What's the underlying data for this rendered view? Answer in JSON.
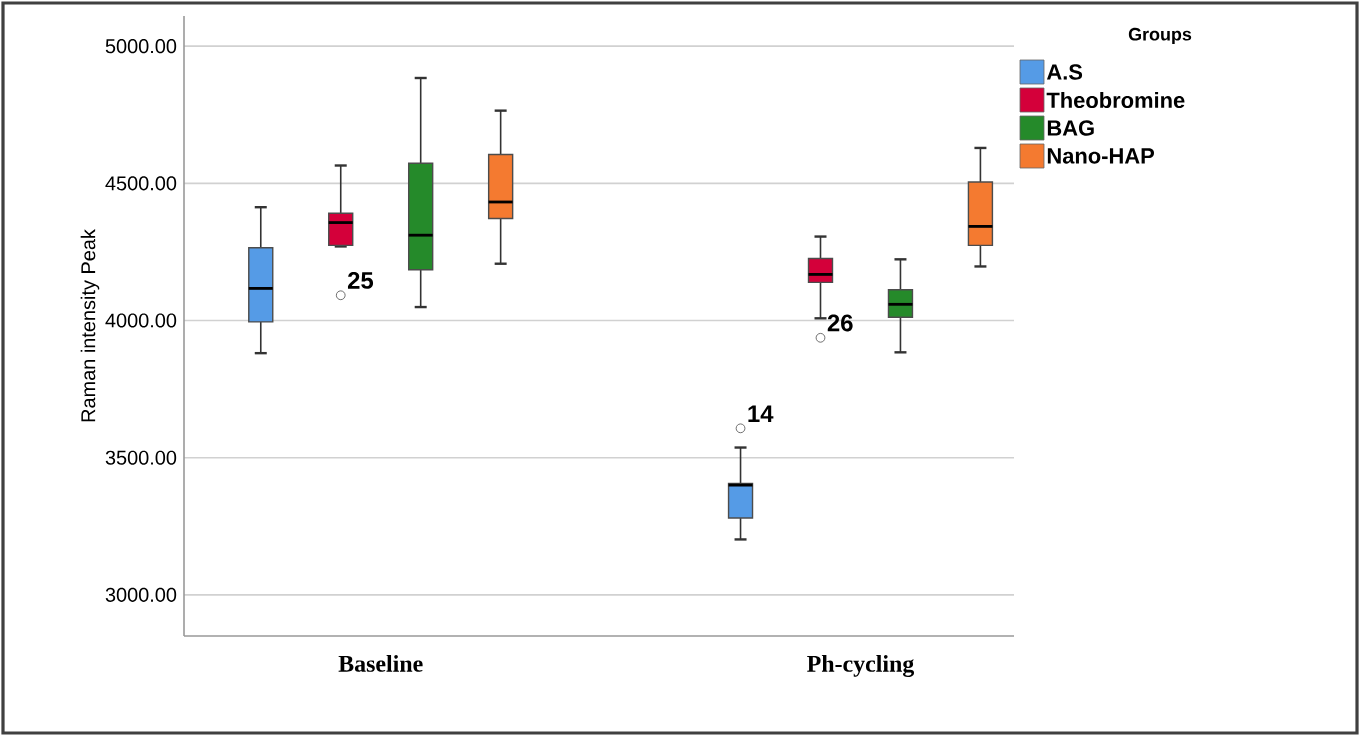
{
  "chart_data": {
    "type": "box",
    "categories": [
      "Baseline",
      "Ph-cycling"
    ],
    "ylabel": "Raman intensity Peak",
    "legend_title": "Groups",
    "legend": "right",
    "grid": "y",
    "ylim": [
      2850,
      5110
    ],
    "yticks": [
      {
        "value": 3000,
        "label": "3000.00"
      },
      {
        "value": 3500,
        "label": "3500.00"
      },
      {
        "value": 4000,
        "label": "4000.00"
      },
      {
        "value": 4500,
        "label": "4500.00"
      },
      {
        "value": 5000,
        "label": "5000.00"
      }
    ],
    "series": [
      {
        "name": "A.S",
        "color": "#559be6",
        "boxes": [
          {
            "low": 3881,
            "q1": 3995,
            "median": 4117,
            "q3": 4265,
            "high": 4413
          },
          {
            "low": 3202,
            "q1": 3280,
            "median": 3400,
            "q3": 3406,
            "high": 3537,
            "outliers": [
              3607
            ]
          }
        ]
      },
      {
        "name": "Theobromine",
        "color": "#d4003a",
        "boxes": [
          {
            "low": 4270,
            "q1": 4274,
            "median": 4357,
            "q3": 4391,
            "high": 4565,
            "outliers": [
              4092
            ]
          },
          {
            "low": 4008,
            "q1": 4139,
            "median": 4168,
            "q3": 4226,
            "high": 4306,
            "outliers": [
              3937
            ]
          }
        ]
      },
      {
        "name": "BAG",
        "color": "#258a2a",
        "boxes": [
          {
            "low": 4049,
            "q1": 4185,
            "median": 4311,
            "q3": 4573,
            "high": 4884
          },
          {
            "low": 3884,
            "q1": 4012,
            "median": 4059,
            "q3": 4112,
            "high": 4223
          }
        ]
      },
      {
        "name": "Nano-HAP",
        "color": "#f47a30",
        "boxes": [
          {
            "low": 4207,
            "q1": 4372,
            "median": 4432,
            "q3": 4605,
            "high": 4765
          },
          {
            "low": 4197,
            "q1": 4274,
            "median": 4343,
            "q3": 4505,
            "high": 4629
          }
        ]
      }
    ],
    "annotations": [
      "14",
      "25",
      "26"
    ]
  }
}
